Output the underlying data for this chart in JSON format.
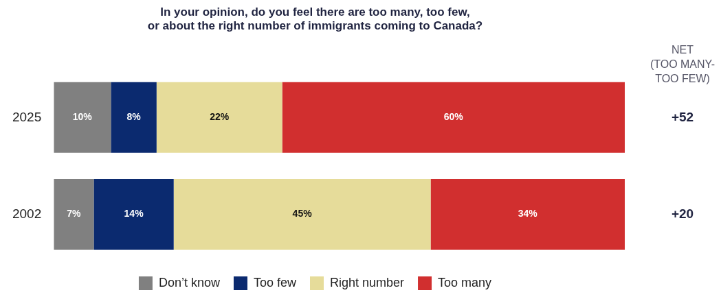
{
  "chart_data": {
    "type": "bar",
    "orientation": "horizontal",
    "stacked": true,
    "title": "In your opinion, do you feel there are too many, too few,\nor about the right number of immigrants coming to Canada?",
    "categories": [
      "2025",
      "2002"
    ],
    "series": [
      {
        "name": "Don’t know",
        "color": "#808080",
        "values": [
          10,
          7
        ],
        "value_labels": [
          "10%",
          "7%"
        ]
      },
      {
        "name": "Too few",
        "color": "#0b2a6f",
        "values": [
          8,
          14
        ],
        "value_labels": [
          "8%",
          "14%"
        ]
      },
      {
        "name": "Right number",
        "color": "#e6dc9a",
        "values": [
          22,
          45
        ],
        "value_labels": [
          "22%",
          "45%"
        ]
      },
      {
        "name": "Too many",
        "color": "#d12f2f",
        "values": [
          60,
          34
        ],
        "value_labels": [
          "60%",
          "34%"
        ]
      }
    ],
    "legend": "bottom",
    "tick_labels": "y",
    "annotations": [
      "NET\n(TOO MANY-\nTOO FEW)",
      "+52",
      "+20"
    ]
  }
}
